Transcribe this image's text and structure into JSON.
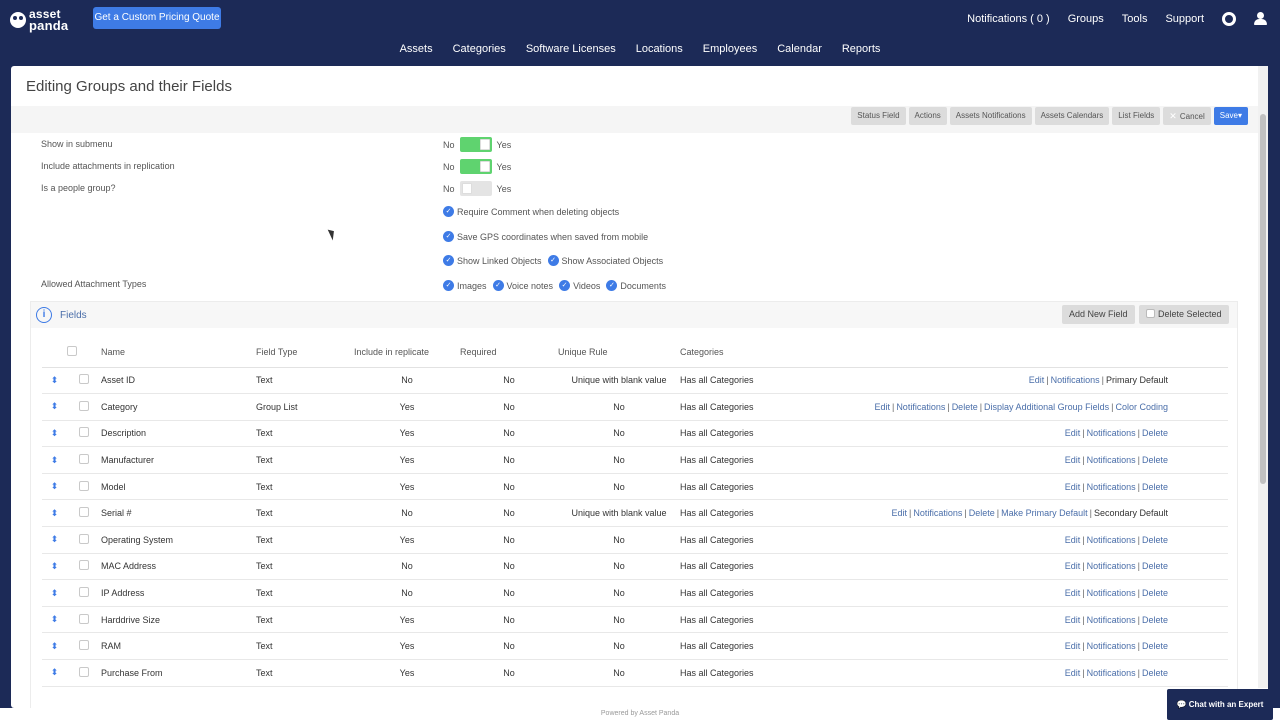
{
  "header": {
    "logo_line1": "asset",
    "logo_line2": "panda",
    "quote_button": "Get a Custom Pricing Quote",
    "notifications": "Notifications ( 0 )",
    "groups": "Groups",
    "tools": "Tools",
    "support": "Support"
  },
  "nav": [
    "Assets",
    "Categories",
    "Software Licenses",
    "Locations",
    "Employees",
    "Calendar",
    "Reports"
  ],
  "page": {
    "title": "Editing Groups and their Fields"
  },
  "toolbar": {
    "status_field": "Status Field",
    "actions": "Actions",
    "assets_notifications": "Assets Notifications",
    "assets_calendars": "Assets Calendars",
    "list_fields": "List Fields",
    "cancel": "Cancel",
    "save": "Save▾"
  },
  "options": {
    "show_in_submenu": "Show in submenu",
    "include_attachments": "Include attachments in replication",
    "is_people_group": "Is a people group?",
    "no": "No",
    "yes": "Yes",
    "require_comment": "Require Comment when deleting objects",
    "save_gps": "Save GPS coordinates when saved from mobile",
    "show_linked": "Show Linked Objects",
    "show_associated": "Show Associated Objects",
    "allowed_attachment_types": "Allowed Attachment Types",
    "images": "Images",
    "voice_notes": "Voice notes",
    "videos": "Videos",
    "documents": "Documents"
  },
  "fields": {
    "title": "Fields",
    "add_new": "Add New Field",
    "delete_selected": "Delete Selected",
    "columns": {
      "name": "Name",
      "field_type": "Field Type",
      "include_replicate": "Include in replicate",
      "required": "Required",
      "unique_rule": "Unique Rule",
      "categories": "Categories"
    },
    "actions": {
      "edit": "Edit",
      "notifications": "Notifications",
      "delete": "Delete",
      "primary_default": "Primary Default",
      "display_additional": "Display Additional Group Fields",
      "color_coding": "Color Coding",
      "make_primary": "Make Primary Default",
      "secondary_default": "Secondary Default"
    },
    "rows": [
      {
        "name": "Asset ID",
        "type": "Text",
        "replicate": "No",
        "required": "No",
        "unique": "Unique with blank value",
        "categories": "Has all Categories"
      },
      {
        "name": "Category",
        "type": "Group List",
        "replicate": "Yes",
        "required": "No",
        "unique": "No",
        "categories": "Has all Categories"
      },
      {
        "name": "Description",
        "type": "Text",
        "replicate": "Yes",
        "required": "No",
        "unique": "No",
        "categories": "Has all Categories"
      },
      {
        "name": "Manufacturer",
        "type": "Text",
        "replicate": "Yes",
        "required": "No",
        "unique": "No",
        "categories": "Has all Categories"
      },
      {
        "name": "Model",
        "type": "Text",
        "replicate": "Yes",
        "required": "No",
        "unique": "No",
        "categories": "Has all Categories"
      },
      {
        "name": "Serial #",
        "type": "Text",
        "replicate": "No",
        "required": "No",
        "unique": "Unique with blank value",
        "categories": "Has all Categories"
      },
      {
        "name": "Operating System",
        "type": "Text",
        "replicate": "Yes",
        "required": "No",
        "unique": "No",
        "categories": "Has all Categories"
      },
      {
        "name": "MAC Address",
        "type": "Text",
        "replicate": "No",
        "required": "No",
        "unique": "No",
        "categories": "Has all Categories"
      },
      {
        "name": "IP Address",
        "type": "Text",
        "replicate": "No",
        "required": "No",
        "unique": "No",
        "categories": "Has all Categories"
      },
      {
        "name": "Harddrive Size",
        "type": "Text",
        "replicate": "Yes",
        "required": "No",
        "unique": "No",
        "categories": "Has all Categories"
      },
      {
        "name": "RAM",
        "type": "Text",
        "replicate": "Yes",
        "required": "No",
        "unique": "No",
        "categories": "Has all Categories"
      },
      {
        "name": "Purchase From",
        "type": "Text",
        "replicate": "Yes",
        "required": "No",
        "unique": "No",
        "categories": "Has all Categories"
      }
    ]
  },
  "footer": {
    "chat": "Chat with an Expert",
    "powered": "Powered by Asset Panda"
  },
  "colors": {
    "header_bg": "#1c2a57",
    "accent_blue": "#3e7be6",
    "toggle_on": "#5fd36f"
  }
}
